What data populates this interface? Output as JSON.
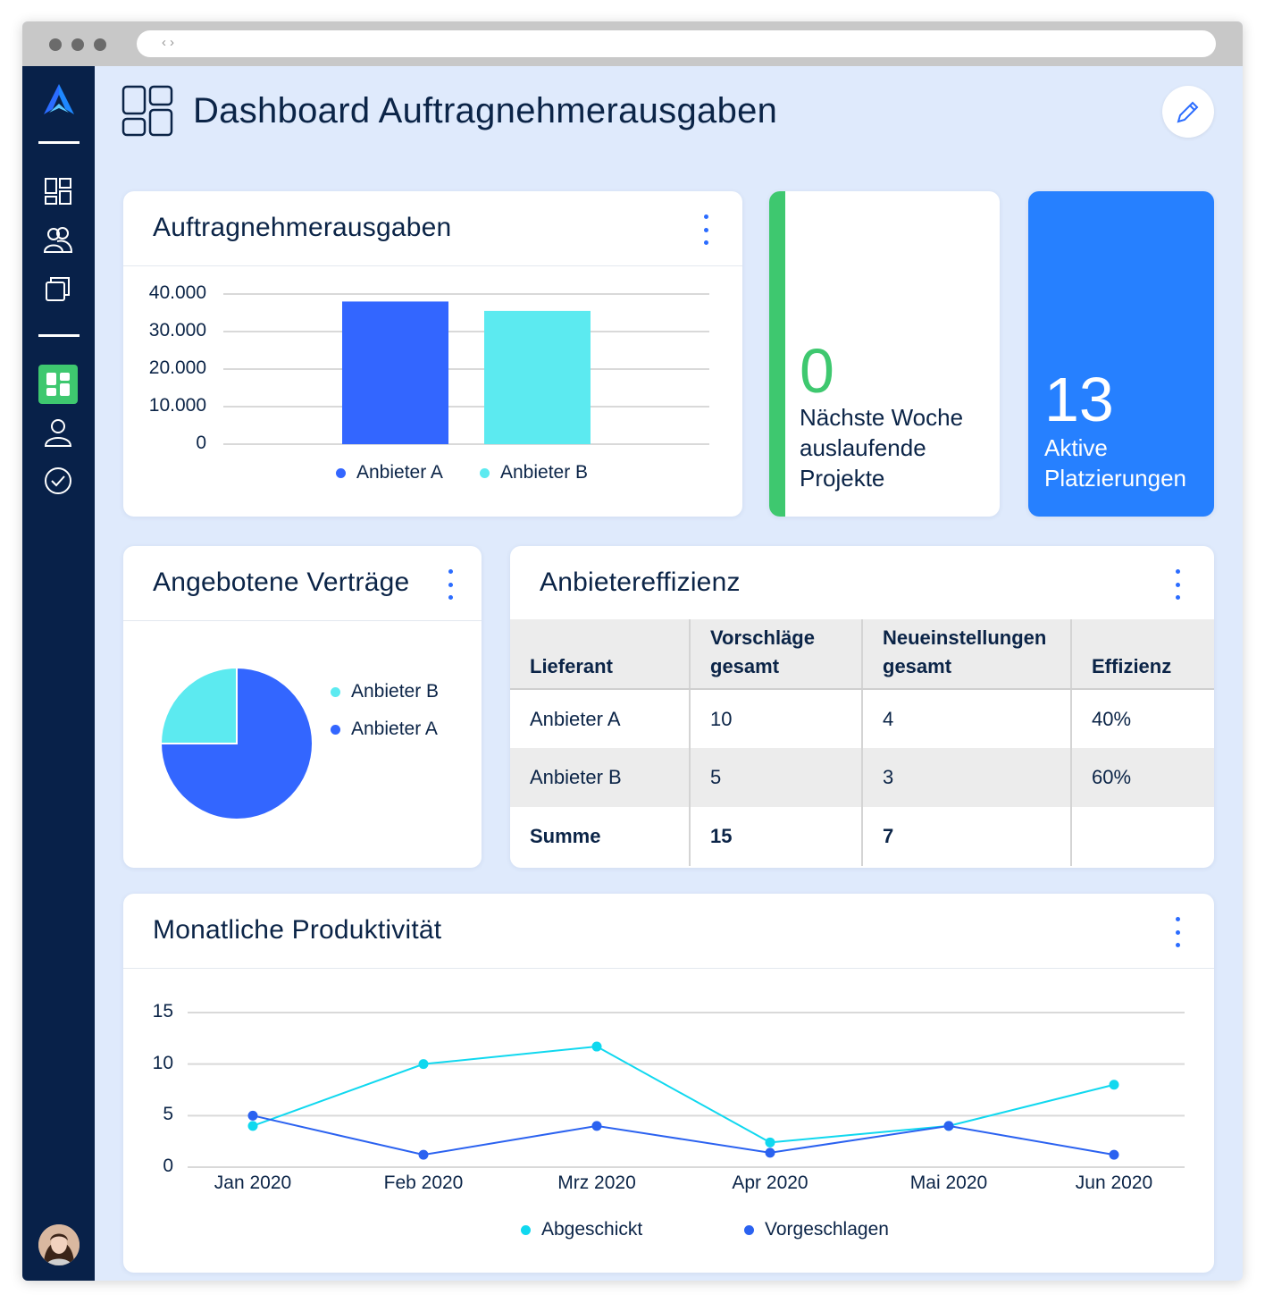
{
  "page": {
    "title": "Dashboard Auftragnehmerausgaben"
  },
  "colors": {
    "sidebar": "#082149",
    "accent": "#2b6cff",
    "series_a": "#3366ff",
    "series_b": "#5ceaf0",
    "green": "#3ec86f",
    "kpi_blue": "#2680ff"
  },
  "sidebar": {
    "items": [
      {
        "icon": "dashboards-icon"
      },
      {
        "icon": "users-icon"
      },
      {
        "icon": "folders-icon"
      },
      {
        "icon": "dashboard-active-icon"
      },
      {
        "icon": "profile-icon"
      },
      {
        "icon": "check-circle-icon"
      }
    ]
  },
  "spend_card": {
    "title": "Auftragnehmerausgaben",
    "legend": [
      "Anbieter A",
      "Anbieter B"
    ],
    "chart_data": {
      "type": "bar",
      "categories": [
        "Anbieter A",
        "Anbieter B"
      ],
      "values": [
        38000,
        35500
      ],
      "yticks": [
        "40.000",
        "30.000",
        "20.000",
        "10.000",
        "0"
      ],
      "ylim": [
        0,
        40000
      ],
      "legend_position": "bottom"
    }
  },
  "kpi_expiring": {
    "value": "0",
    "label_lines": [
      "Nächste Woche",
      "auslaufende",
      "Projekte"
    ]
  },
  "kpi_active": {
    "value": "13",
    "label_lines": [
      "Aktive",
      "Platzierungen"
    ]
  },
  "contracts_card": {
    "title": "Angebotene Verträge",
    "legend": [
      "Anbieter B",
      "Anbieter A"
    ],
    "chart_data": {
      "type": "pie",
      "labels": [
        "Anbieter B",
        "Anbieter A"
      ],
      "values": [
        25,
        75
      ],
      "legend_position": "right"
    }
  },
  "efficiency_card": {
    "title": "Anbietereffizienz",
    "columns": [
      "Lieferant",
      "Vorschläge gesamt",
      "Neueinstellungen gesamt",
      "Effizienz"
    ],
    "rows": [
      [
        "Anbieter A",
        "10",
        "4",
        "40%"
      ],
      [
        "Anbieter B",
        "5",
        "3",
        "60%"
      ],
      [
        "Summe",
        "15",
        "7",
        ""
      ]
    ]
  },
  "productivity_card": {
    "title": "Monatliche Produktivität",
    "legend": [
      "Abgeschickt",
      "Vorgeschlagen"
    ],
    "chart_data": {
      "type": "line",
      "x": [
        "Jan 2020",
        "Feb 2020",
        "Mrz 2020",
        "Apr 2020",
        "Mai 2020",
        "Jun 2020"
      ],
      "yticks": [
        "15",
        "10",
        "5",
        "0"
      ],
      "ylim": [
        0,
        15
      ],
      "series": [
        {
          "name": "Abgeschickt",
          "values": [
            4,
            10,
            11.7,
            2.4,
            4,
            8
          ]
        },
        {
          "name": "Vorgeschlagen",
          "values": [
            5,
            1.2,
            4,
            1.4,
            4,
            1.2
          ]
        }
      ],
      "legend_position": "bottom"
    }
  }
}
